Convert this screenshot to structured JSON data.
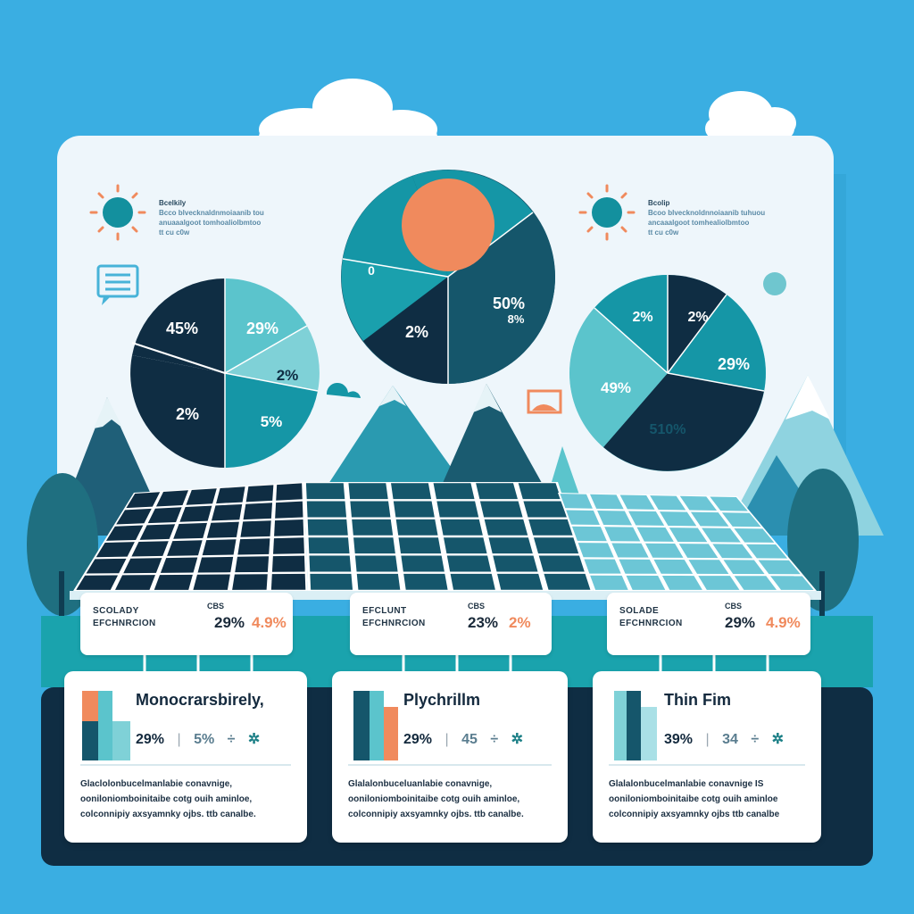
{
  "colors": {
    "sky": "#3aaee2",
    "panel": "#eef6fb",
    "navy": "#0f2d43",
    "dark_teal": "#15566b",
    "teal": "#1596a6",
    "light_teal": "#5bc4cc",
    "coral": "#f08a5d",
    "mountain": "#2b9fb2"
  },
  "icons": [
    "cloud-icon",
    "sun-icon",
    "chat-icon",
    "mountain-icon",
    "tree-icon",
    "solar-panel-icon",
    "bar-chart-icon"
  ],
  "info_left": {
    "heading": "Bcelkily",
    "lines": [
      "Bcco blvecknaldnmoiaanib tou",
      "anuaaalgoot tomhoaliolbmtoo",
      "tt cu c0w"
    ]
  },
  "info_right": {
    "heading": "Bcolip",
    "lines": [
      "Bcoo blvecknoldnnoiaanib tuhuou",
      "ancaaalgoot tomhealiolbmtoo",
      "tt cu c0w"
    ]
  },
  "pie_left": {
    "labels": [
      "45%",
      "29%",
      "2%",
      "2%",
      "5%"
    ]
  },
  "pie_center": {
    "labels": [
      "0",
      "2%",
      "50%",
      "8%"
    ]
  },
  "pie_right": {
    "labels": [
      "2%",
      "2%",
      "29%",
      "49%",
      "510%"
    ]
  },
  "callouts": [
    {
      "label_1": "SCOLADY",
      "label_2": "EFCHNRCION",
      "tag": "CBS",
      "value_1": "29%",
      "value_2": "4.9%"
    },
    {
      "label_1": "EFCLUNT",
      "label_2": "EFCHNRCION",
      "tag": "CBS",
      "value_1": "23%",
      "value_2": "2%"
    },
    {
      "label_1": "SOLADE",
      "label_2": "EFCHNRCION",
      "tag": "CBS",
      "value_1": "29%",
      "value_2": "4.9%"
    }
  ],
  "cards": [
    {
      "title": "Monocrarsbirely,",
      "stat_1": "29%",
      "stat_2": "5%",
      "stat_3": "÷",
      "stat_4": "✲",
      "lines": [
        "Glaclolonbucelmanlabie conavnige,",
        "ooniloniomboinitaibe cotg ouih aminloe,",
        "colconnipiy axsyamnky ojbs. ttb canalbe."
      ]
    },
    {
      "title": "Plychrillm",
      "stat_1": "29%",
      "stat_2": "45",
      "stat_3": "÷",
      "stat_4": "✲",
      "lines": [
        "Glalalonbuceluanlabie conavnige,",
        "ooniloniomboinitaibe cotg ouih aminloe,",
        "colconnipiy axsyamnky ojbs. ttb canalbe."
      ]
    },
    {
      "title": "Thin Fim",
      "stat_1": "39%",
      "stat_2": "34",
      "stat_3": "÷",
      "stat_4": "✲",
      "lines": [
        "Glalalonbucelmanlabie conavnige IS",
        "ooniloniomboinitaibe cotg ouih aminloe",
        "colconnipiy axsyamnky ojbs ttb canalbe"
      ]
    }
  ]
}
